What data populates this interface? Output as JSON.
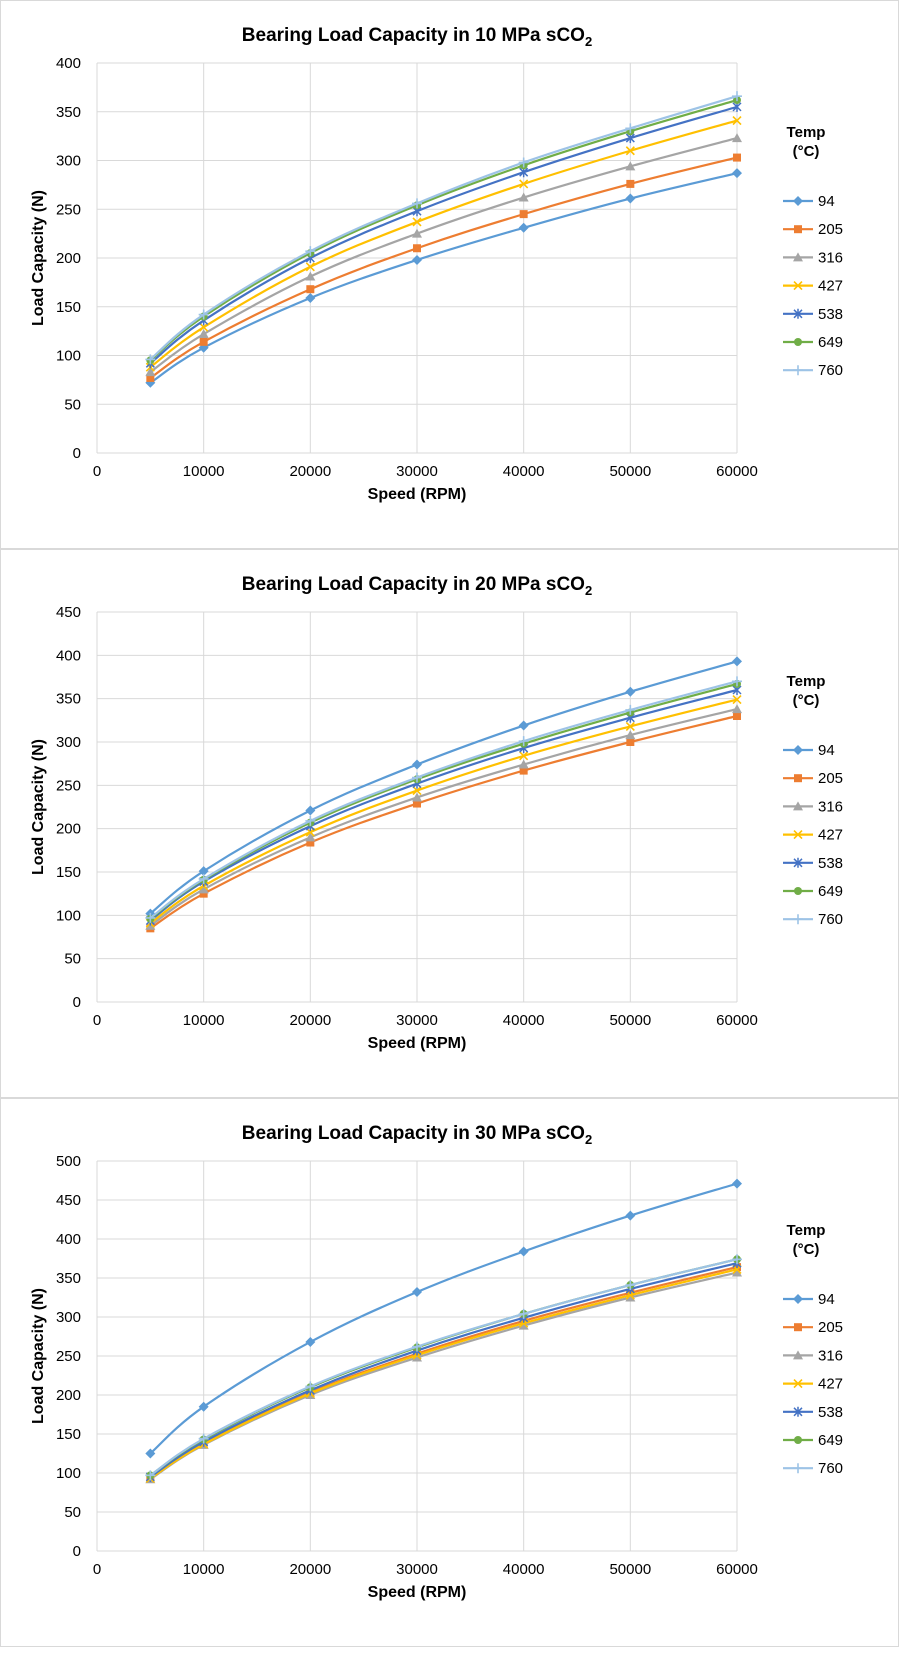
{
  "legend": {
    "title_line1": "Temp",
    "title_line2": "(°C)"
  },
  "series_colors": {
    "94": "#5B9BD5",
    "205": "#ED7D31",
    "316": "#A5A5A5",
    "427": "#FFC000",
    "538": "#4472C4",
    "649": "#70AD47",
    "760": "#9DC3E6"
  },
  "series_markers": {
    "94": "diamond",
    "205": "square",
    "316": "triangle",
    "427": "x",
    "538": "star",
    "649": "circle",
    "760": "plus"
  },
  "chart_data": [
    {
      "type": "line",
      "title": "Bearing Load Capacity in 10 MPa sCO",
      "title_subscript": "2",
      "xlabel": "Speed (RPM)",
      "ylabel": "Load Capacity (N)",
      "xlim": [
        0,
        60000
      ],
      "ylim": [
        0,
        400
      ],
      "xticks": [
        0,
        10000,
        20000,
        30000,
        40000,
        50000,
        60000
      ],
      "yticks": [
        0,
        50,
        100,
        150,
        200,
        250,
        300,
        350,
        400
      ],
      "grid": true,
      "legend_position": "right",
      "x": [
        5000,
        10000,
        20000,
        30000,
        40000,
        50000,
        60000
      ],
      "series": [
        {
          "name": "94",
          "values": [
            72,
            108,
            159,
            198,
            231,
            261,
            287
          ]
        },
        {
          "name": "205",
          "values": [
            77,
            114,
            168,
            210,
            245,
            276,
            303
          ]
        },
        {
          "name": "316",
          "values": [
            83,
            122,
            181,
            225,
            262,
            294,
            323
          ]
        },
        {
          "name": "427",
          "values": [
            88,
            129,
            191,
            237,
            276,
            310,
            341
          ]
        },
        {
          "name": "538",
          "values": [
            92,
            136,
            200,
            248,
            288,
            323,
            355
          ]
        },
        {
          "name": "649",
          "values": [
            95,
            140,
            205,
            254,
            295,
            330,
            362
          ]
        },
        {
          "name": "760",
          "values": [
            96,
            142,
            207,
            256,
            298,
            333,
            366
          ]
        }
      ]
    },
    {
      "type": "line",
      "title": "Bearing Load Capacity in 20 MPa sCO",
      "title_subscript": "2",
      "xlabel": "Speed (RPM)",
      "ylabel": "Load Capacity (N)",
      "xlim": [
        0,
        60000
      ],
      "ylim": [
        0,
        450
      ],
      "xticks": [
        0,
        10000,
        20000,
        30000,
        40000,
        50000,
        60000
      ],
      "yticks": [
        0,
        50,
        100,
        150,
        200,
        250,
        300,
        350,
        400,
        450
      ],
      "grid": true,
      "legend_position": "right",
      "x": [
        5000,
        10000,
        20000,
        30000,
        40000,
        50000,
        60000
      ],
      "series": [
        {
          "name": "94",
          "values": [
            102,
            151,
            221,
            274,
            319,
            358,
            393
          ]
        },
        {
          "name": "205",
          "values": [
            85,
            125,
            184,
            229,
            267,
            300,
            330
          ]
        },
        {
          "name": "316",
          "values": [
            88,
            130,
            190,
            236,
            274,
            308,
            338
          ]
        },
        {
          "name": "427",
          "values": [
            91,
            134,
            196,
            244,
            284,
            318,
            349
          ]
        },
        {
          "name": "538",
          "values": [
            94,
            139,
            203,
            252,
            293,
            328,
            360
          ]
        },
        {
          "name": "649",
          "values": [
            96,
            141,
            207,
            257,
            298,
            334,
            367
          ]
        },
        {
          "name": "760",
          "values": [
            97,
            142,
            209,
            259,
            301,
            337,
            370
          ]
        }
      ]
    },
    {
      "type": "line",
      "title": "Bearing Load Capacity in 30 MPa sCO",
      "title_subscript": "2",
      "xlabel": "Speed (RPM)",
      "ylabel": "Load Capacity (N)",
      "xlim": [
        0,
        60000
      ],
      "ylim": [
        0,
        500
      ],
      "xticks": [
        0,
        10000,
        20000,
        30000,
        40000,
        50000,
        60000
      ],
      "yticks": [
        0,
        50,
        100,
        150,
        200,
        250,
        300,
        350,
        400,
        450,
        500
      ],
      "grid": true,
      "legend_position": "right",
      "x": [
        5000,
        10000,
        20000,
        30000,
        40000,
        50000,
        60000
      ],
      "series": [
        {
          "name": "94",
          "values": [
            125,
            185,
            268,
            332,
            384,
            430,
            471
          ]
        },
        {
          "name": "205",
          "values": [
            93,
            138,
            203,
            253,
            295,
            331,
            364
          ]
        },
        {
          "name": "316",
          "values": [
            92,
            136,
            200,
            248,
            289,
            325,
            357
          ]
        },
        {
          "name": "427",
          "values": [
            93,
            137,
            202,
            251,
            292,
            328,
            361
          ]
        },
        {
          "name": "538",
          "values": [
            95,
            140,
            206,
            257,
            299,
            336,
            369
          ]
        },
        {
          "name": "649",
          "values": [
            97,
            143,
            210,
            261,
            304,
            341,
            374
          ]
        },
        {
          "name": "760",
          "values": [
            97,
            144,
            211,
            262,
            304,
            341,
            374
          ]
        }
      ]
    }
  ]
}
